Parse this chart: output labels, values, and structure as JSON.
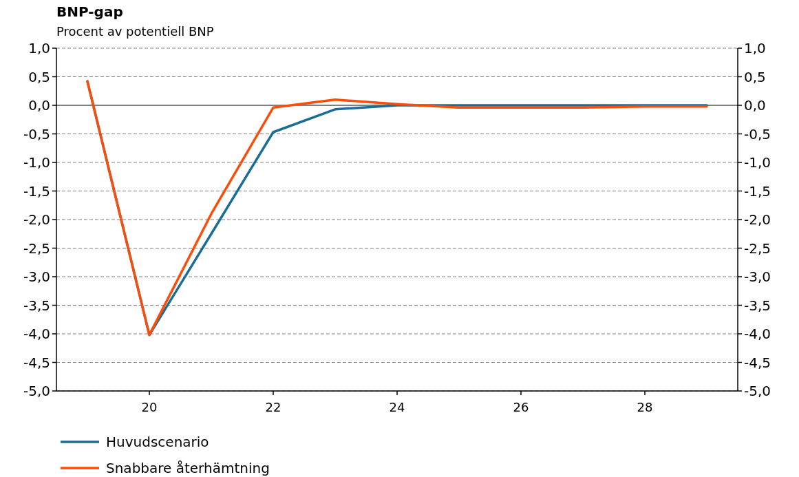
{
  "chart_data": {
    "type": "line",
    "title": "BNP-gap",
    "subtitle": "Procent av potentiell BNP",
    "x": [
      19,
      20,
      21,
      22,
      23,
      24,
      25,
      26,
      27,
      28,
      29
    ],
    "series": [
      {
        "name": "Huvudscenario",
        "color": "#1a6e96",
        "values": [
          0.42,
          -4.02,
          -2.25,
          -0.47,
          -0.07,
          0,
          0,
          0,
          0,
          0,
          0
        ]
      },
      {
        "name": "Snabbare återhämtning",
        "color": "#fa4d0a",
        "values": [
          0.42,
          -4.02,
          -1.9,
          -0.04,
          0.1,
          0.02,
          -0.04,
          -0.04,
          -0.04,
          -0.02,
          -0.02
        ]
      }
    ],
    "xlim": [
      18.5,
      29.5
    ],
    "xticks": [
      20,
      22,
      24,
      26,
      28
    ],
    "ylim": [
      -5,
      1
    ],
    "yticks": [
      {
        "value": 1,
        "label": "1,0"
      },
      {
        "value": 0.5,
        "label": "0,5"
      },
      {
        "value": 0,
        "label": "0,0"
      },
      {
        "value": -0.5,
        "label": "-0,5"
      },
      {
        "value": -1,
        "label": "-1,0"
      },
      {
        "value": -1.5,
        "label": "-1,5"
      },
      {
        "value": -2,
        "label": "-2,0"
      },
      {
        "value": -2.5,
        "label": "-2,5"
      },
      {
        "value": -3,
        "label": "-3,0"
      },
      {
        "value": -3.5,
        "label": "-3,5"
      },
      {
        "value": -4,
        "label": "-4,0"
      },
      {
        "value": -4.5,
        "label": "-4,5"
      },
      {
        "value": -5,
        "label": "-5,0"
      }
    ],
    "y2lim": [
      -5,
      1
    ],
    "y2ticks": [
      {
        "value": 1,
        "label": "1,0"
      },
      {
        "value": 0.5,
        "label": "0,5"
      },
      {
        "value": 0,
        "label": "0,0"
      },
      {
        "value": -0.5,
        "label": "-0,5"
      },
      {
        "value": -1,
        "label": "-1,0"
      },
      {
        "value": -1.5,
        "label": "-1,5"
      },
      {
        "value": -2,
        "label": "-2,0"
      },
      {
        "value": -2.5,
        "label": "-2,5"
      },
      {
        "value": -3,
        "label": "-3,0"
      },
      {
        "value": -3.5,
        "label": "-3,5"
      },
      {
        "value": -4,
        "label": "-4,0"
      },
      {
        "value": -4.5,
        "label": "-4,5"
      },
      {
        "value": -5,
        "label": "-5,0"
      }
    ],
    "grid": "y",
    "ref_lines": [
      {
        "axis": "y",
        "value": 0,
        "color": "#808080",
        "line_style": "solid"
      }
    ],
    "legend": "bottom left",
    "line_style": "solid",
    "marker": "none"
  }
}
